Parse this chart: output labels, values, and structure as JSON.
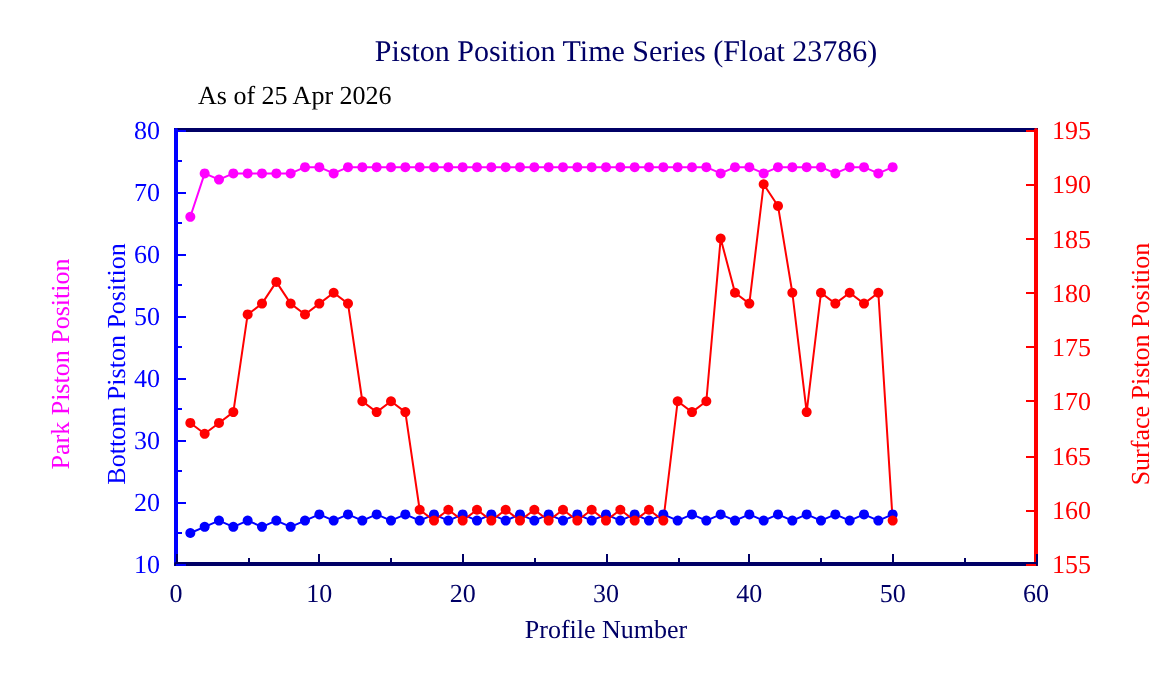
{
  "chart_data": {
    "type": "line",
    "title": "Piston Position Time Series (Float 23786)",
    "subtitle": "As of 25 Apr 2026",
    "xlabel": "Profile Number",
    "x": [
      1,
      2,
      3,
      4,
      5,
      6,
      7,
      8,
      9,
      10,
      11,
      12,
      13,
      14,
      15,
      16,
      17,
      18,
      19,
      20,
      21,
      22,
      23,
      24,
      25,
      26,
      27,
      28,
      29,
      30,
      31,
      32,
      33,
      34,
      35,
      36,
      37,
      38,
      39,
      40,
      41,
      42,
      43,
      44,
      45,
      46,
      47,
      48,
      49,
      50
    ],
    "series": [
      {
        "name": "Park Piston Position",
        "color": "#ff00ff",
        "values": [
          66,
          73,
          72,
          73,
          73,
          73,
          73,
          73,
          74,
          74,
          73,
          74,
          74,
          74,
          74,
          74,
          74,
          74,
          74,
          74,
          74,
          74,
          74,
          74,
          74,
          74,
          74,
          74,
          74,
          74,
          74,
          74,
          74,
          74,
          74,
          74,
          74,
          73,
          74,
          74,
          73,
          74,
          74,
          74,
          74,
          73,
          74,
          74,
          73,
          74
        ]
      },
      {
        "name": "Bottom Piston Position",
        "color": "#0000ff",
        "values": [
          15,
          16,
          17,
          16,
          17,
          16,
          17,
          16,
          17,
          18,
          17,
          18,
          17,
          18,
          17,
          18,
          17,
          18,
          17,
          18,
          17,
          18,
          17,
          18,
          17,
          18,
          17,
          18,
          17,
          18,
          17,
          18,
          17,
          18,
          17,
          18,
          17,
          18,
          17,
          18,
          17,
          18,
          17,
          18,
          17,
          18,
          17,
          18,
          17,
          18
        ]
      },
      {
        "name": "Surface Piston Position",
        "color": "#ff0000",
        "axis": "y2",
        "values": [
          168,
          167,
          168,
          169,
          178,
          179,
          181,
          179,
          178,
          179,
          180,
          179,
          170,
          169,
          170,
          169,
          160,
          159,
          160,
          159,
          160,
          159,
          160,
          159,
          160,
          159,
          160,
          159,
          160,
          159,
          160,
          159,
          160,
          159,
          170,
          169,
          170,
          185,
          180,
          179,
          190,
          188,
          180,
          169,
          180,
          179,
          180,
          179,
          180,
          159
        ]
      }
    ],
    "xlim": [
      0,
      60
    ],
    "xticks": [
      0,
      10,
      20,
      30,
      40,
      50,
      60
    ],
    "ylim": [
      10,
      80
    ],
    "yticks": [
      10,
      20,
      30,
      40,
      50,
      60,
      70,
      80
    ],
    "y2lim": [
      155,
      195
    ],
    "y2ticks": [
      155,
      160,
      165,
      170,
      175,
      180,
      185,
      190,
      195
    ],
    "marker": "circle"
  }
}
